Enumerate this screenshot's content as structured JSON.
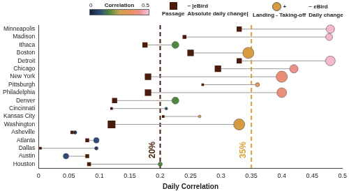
{
  "chart_data": {
    "type": "dumbbell",
    "x_label": "Daily Correlation",
    "categories": [
      "Minneapolis",
      "Madison",
      "Ithaca",
      "Boston",
      "Detroit",
      "Chicago",
      "New York",
      "Pittsburgh",
      "Philadelphia",
      "Denver",
      "Cincinnati",
      "Kansas City",
      "Washington",
      "Asheville",
      "Atlanta",
      "Dallas",
      "Austin",
      "Houston"
    ],
    "series": [
      {
        "name": "Passage",
        "marker": "square",
        "color": "#4a1c0c",
        "values": [
          0.33,
          0.24,
          0.175,
          0.25,
          0.33,
          0.295,
          0.18,
          0.27,
          0.18,
          0.125,
          0.12,
          0.205,
          0.12,
          0.055,
          0.08,
          0.003,
          0.08,
          0.083
        ],
        "sizes": [
          4,
          3,
          4,
          5,
          4,
          5,
          5,
          2,
          5,
          4,
          2,
          2,
          6,
          2.5,
          3,
          2,
          3,
          3
        ]
      },
      {
        "name": "Landing - Taking-off",
        "marker": "circle",
        "color": "#d99a40",
        "values": [
          0.48,
          0.478,
          0.225,
          0.345,
          0.48,
          0.42,
          0.4,
          0.36,
          0.4,
          0.225,
          0.21,
          0.265,
          0.33,
          0.06,
          0.095,
          0.095,
          0.045,
          0.2
        ],
        "sizes": [
          6,
          5,
          5,
          8,
          7,
          6,
          8,
          3,
          7,
          5,
          2,
          2,
          8,
          2.5,
          4,
          2.5,
          4,
          3
        ],
        "colors": [
          "#f4b8c8",
          "#f4b8c8",
          "#4e8a3e",
          "#d99a40",
          "#f4b8c8",
          "#ee8f8a",
          "#ec8e74",
          "#e89a50",
          "#ee8f7a",
          "#4e8a3e",
          "#2e4a52",
          "#c9a452",
          "#d49a42",
          "#1e3350",
          "#2a4a78",
          "#27406a",
          "#2a4a78",
          "#4e8a3e"
        ]
      }
    ],
    "xlim": [
      0,
      0.5
    ],
    "xticks": [
      0,
      0.05,
      0.1,
      0.15,
      0.2,
      0.25,
      0.3,
      0.35,
      0.4,
      0.45,
      0.5
    ],
    "grid": false,
    "reference_lines": [
      {
        "x": 0.2,
        "label": "20%",
        "color": "#4a1c0c",
        "line_style": "dashed"
      },
      {
        "x": 0.35,
        "label": "35%",
        "color": "#d9a030",
        "line_style": "dashed"
      }
    ],
    "annotations": [
      "~ |eBird",
      "Absolute daily change|",
      "+",
      "~ eBird",
      "Daily change"
    ],
    "colorbar": {
      "label": "Correlation",
      "range": [
        0,
        0.5
      ],
      "ticks": [
        0,
        0.5
      ]
    }
  }
}
